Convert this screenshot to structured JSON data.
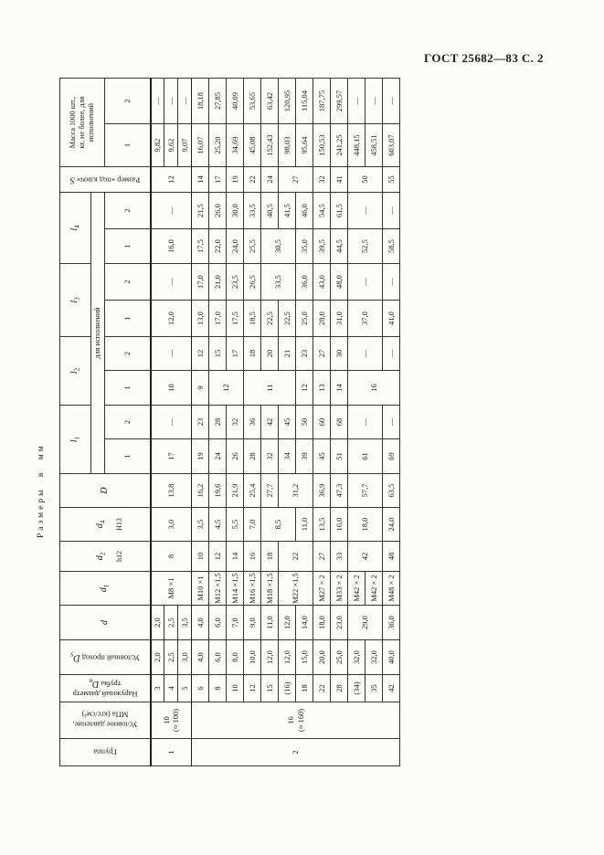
{
  "page": {
    "title": "ГОСТ 25682—83 С. 2",
    "units_note": "Размеры в мм"
  },
  "header": {
    "gruppa": "Группа",
    "davlenie_line1": "Условное давление,",
    "davlenie_line2": "МПа (кгс/см²)",
    "dn_line1": "Наружный диаметр",
    "dn_line2": "трубы ",
    "dn_var": "D",
    "dn_sub": "н",
    "du_text": "Условный проход ",
    "du_var": "D",
    "du_sub": "у",
    "d_var": "d",
    "d1_var": "d",
    "d1_sub": "1",
    "d2_var": "d",
    "d2_sub": "2",
    "d2_tol": "h12",
    "d4_var": "d",
    "d4_sub": "4",
    "d4_tol": "Н13",
    "Dbig_var": "D",
    "l_var": "l",
    "l1_sub": "1",
    "l2_sub": "2",
    "l3_sub": "3",
    "l4_sub": "4",
    "ispolneniy": "для исполнений",
    "exec_1": "1",
    "exec_2": "2",
    "s_text": "Размер «под ключ» ",
    "s_var": "S",
    "mass_line1": "Масса 1000 шт.,",
    "mass_line2": "кг, не более, для",
    "mass_line3": "исполнений"
  },
  "table": {
    "row_count": 15,
    "columns": [
      {
        "key": "gruppa",
        "cells": [
          {
            "v": "1",
            "s": 3
          },
          {
            "v": "2",
            "s": 12
          }
        ]
      },
      {
        "key": "davlenie",
        "cells": [
          {
            "v": "10\n(≈ 100)",
            "s": 3
          },
          {
            "v": "16\n(≈ 160)",
            "s": 12
          }
        ]
      },
      {
        "key": "dn",
        "cells": [
          "3",
          "4",
          "5",
          "6",
          "8",
          "10",
          "12",
          "15",
          "(16)",
          "18",
          "22",
          "28",
          "(34)",
          "35",
          "42"
        ]
      },
      {
        "key": "du",
        "cells": [
          "2,0",
          "2,5",
          "3,0",
          "4,0",
          "6,0",
          "8,0",
          "10,0",
          "12,0",
          "12,0",
          "15,0",
          "20,0",
          "25,0",
          "32,0",
          "32,0",
          "40,0"
        ]
      },
      {
        "key": "d",
        "cells": [
          "2,0",
          "2,5",
          "3,5",
          "4,0",
          "6,0",
          "7,0",
          "9,0",
          "11,0",
          "12,0",
          "14,0",
          "18,0",
          "23,0",
          {
            "v": "29,0",
            "s": 2
          },
          "36,0"
        ]
      },
      {
        "key": "d1",
        "cells": [
          {
            "v": "М8 ×1",
            "s": 3
          },
          "М10 ×1",
          "М12 ×1,5",
          "М14 ×1,5",
          "М16 ×1,5",
          "М18 ×1,5",
          {
            "v": "М22 ×1,5",
            "s": 2
          },
          "М27 × 2",
          "М33 × 2",
          "М42 × 2",
          "М42 × 2",
          "М48 × 2"
        ]
      },
      {
        "key": "d2",
        "cells": [
          {
            "v": "8",
            "s": 3
          },
          "10",
          "12",
          "14",
          "16",
          "18",
          {
            "v": "22",
            "s": 2
          },
          "27",
          "33",
          {
            "v": "42",
            "s": 2
          },
          "48"
        ]
      },
      {
        "key": "d4",
        "cells": [
          {
            "v": "3,0",
            "s": 3
          },
          "3,5",
          "4,5",
          "5,5",
          "7,0",
          {
            "v": "8,5",
            "s": 2
          },
          "11,0",
          "13,5",
          "16,0",
          {
            "v": "18,0",
            "s": 2
          },
          "24,0"
        ]
      },
      {
        "key": "Dbig",
        "cells": [
          {
            "v": "13,8",
            "s": 3
          },
          "16,2",
          "19,6",
          "21,9",
          "25,4",
          "27,7",
          {
            "v": "31,2",
            "s": 2
          },
          "36,9",
          "47,3",
          {
            "v": "57,7",
            "s": 2
          },
          "63,5"
        ]
      },
      {
        "key": "l1_1",
        "cells": [
          {
            "v": "17",
            "s": 3
          },
          "19",
          "24",
          "26",
          "28",
          "32",
          "34",
          "39",
          "45",
          "51",
          {
            "v": "61",
            "s": 2
          },
          "69"
        ]
      },
      {
        "key": "l1_2",
        "cells": [
          {
            "v": "—",
            "s": 3
          },
          "23",
          "28",
          "32",
          "36",
          "42",
          "45",
          "50",
          "60",
          "68",
          {
            "v": "—",
            "s": 2
          },
          "—"
        ]
      },
      {
        "key": "l2_1",
        "cells": [
          {
            "v": "10",
            "s": 3
          },
          "9",
          {
            "v": "12",
            "s": 2
          },
          {
            "v": "11",
            "s": 3
          },
          "12",
          "13",
          "14",
          {
            "v": "16",
            "s": 3
          }
        ]
      },
      {
        "key": "l2_2",
        "cells": [
          {
            "v": "—",
            "s": 3
          },
          "12",
          "15",
          "17",
          "18",
          "20",
          "21",
          "23",
          "27",
          "30",
          {
            "v": "—",
            "s": 2
          },
          "—"
        ]
      },
      {
        "key": "l3_1",
        "cells": [
          {
            "v": "12,0",
            "s": 3
          },
          "13,0",
          "17,0",
          "17,5",
          "18,5",
          "22,5",
          "22,5",
          "25,0",
          "28,0",
          "31,0",
          {
            "v": "37,0",
            "s": 2
          },
          "41,0"
        ]
      },
      {
        "key": "l3_2",
        "cells": [
          {
            "v": "—",
            "s": 3
          },
          "17,0",
          "21,0",
          "23,5",
          "26,5",
          {
            "v": "33,5",
            "s": 2
          },
          "36,0",
          "43,0",
          "48,0",
          {
            "v": "—",
            "s": 2
          },
          "—"
        ]
      },
      {
        "key": "l4_1",
        "cells": [
          {
            "v": "16,0",
            "s": 3
          },
          "17,5",
          "22,0",
          "24,0",
          "25,5",
          {
            "v": "30,5",
            "s": 2
          },
          "35,0",
          "39,5",
          "44,5",
          {
            "v": "52,5",
            "s": 2
          },
          "58,5"
        ]
      },
      {
        "key": "l4_2",
        "cells": [
          {
            "v": "—",
            "s": 3
          },
          "21,5",
          "26,0",
          "30,0",
          "33,5",
          "40,5",
          "41,5",
          "46,0",
          "54,5",
          "61,5",
          {
            "v": "—",
            "s": 2
          },
          "—"
        ]
      },
      {
        "key": "s",
        "cells": [
          {
            "v": "12",
            "s": 3
          },
          "14",
          "17",
          "19",
          "22",
          "24",
          {
            "v": "27",
            "s": 2
          },
          "32",
          "41",
          {
            "v": "50",
            "s": 2
          },
          "55"
        ]
      },
      {
        "key": "m1",
        "cells": [
          "9,82",
          "9,62",
          "9,07",
          "16,07",
          "25,20",
          "34,69",
          "45,08",
          "152,43",
          "98,03",
          "95,64",
          "150,53",
          "241,25",
          "448,15",
          "458,51",
          "603,07"
        ]
      },
      {
        "key": "m2",
        "cells": [
          "—",
          "—",
          "—",
          "18,18",
          "27,85",
          "40,09",
          "53,65",
          "63,42",
          "120,95",
          "115,04",
          "187,75",
          "299,57",
          "—",
          "—",
          "—"
        ]
      }
    ]
  }
}
